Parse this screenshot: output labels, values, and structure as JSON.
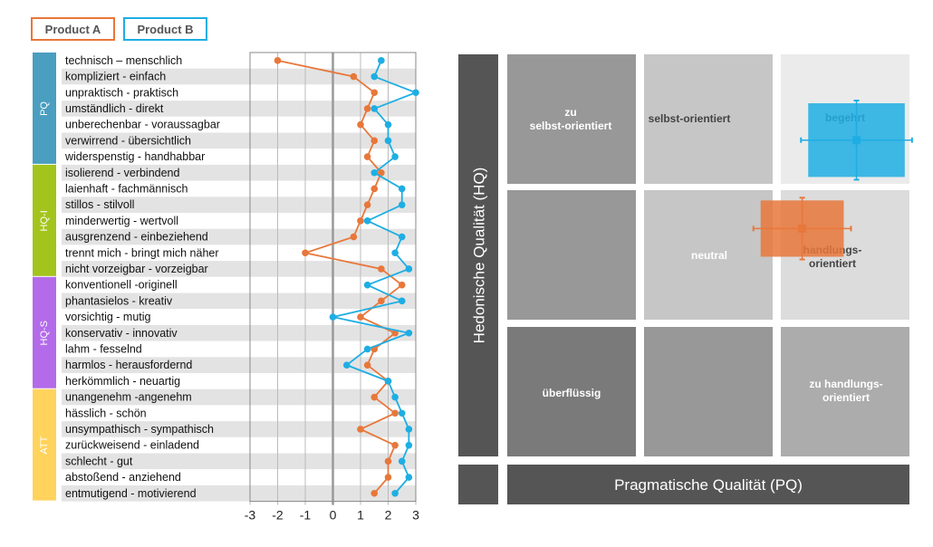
{
  "legend": {
    "product_a": {
      "label": "Product A",
      "color": "#E8773A"
    },
    "product_b": {
      "label": "Product B",
      "color": "#1EAEE3"
    }
  },
  "chart_data": [
    {
      "type": "line",
      "categories": [
        "technisch – menschlich",
        "kompliziert - einfach",
        "unpraktisch - praktisch",
        "umständlich - direkt",
        "unberechenbar - voraussagbar",
        "verwirrend - übersichtlich",
        "widerspenstig - handhabbar",
        "isolierend - verbindend",
        "laienhaft - fachmännisch",
        "stillos - stilvoll",
        "minderwertig - wertvoll",
        "ausgrenzend - einbeziehend",
        "trennt mich - bringt mich näher",
        "nicht vorzeigbar - vorzeigbar",
        "konventionell -originell",
        "phantasielos - kreativ",
        "vorsichtig - mutig",
        "konservativ - innovativ",
        "lahm - fesselnd",
        "harmlos - herausfordernd",
        "herkömmlich - neuartig",
        "unangenehm -angenehm",
        "hässlich - schön",
        "unsympathisch - sympathisch",
        "zurückweisend - einladend",
        "schlecht - gut",
        "abstoßend - anziehend",
        "entmutigend - motivierend"
      ],
      "groups": [
        {
          "label": "PQ",
          "count": 7,
          "color": "#4A9EBF"
        },
        {
          "label": "HQ-I",
          "count": 7,
          "color": "#A3C41C"
        },
        {
          "label": "HQ-S",
          "count": 7,
          "color": "#B36BEA"
        },
        {
          "label": "ATT",
          "count": 7,
          "color": "#FFD35C"
        }
      ],
      "series": [
        {
          "name": "Product A",
          "color": "#E8773A",
          "values": [
            -2.0,
            0.75,
            1.5,
            1.25,
            1.0,
            1.5,
            1.25,
            1.75,
            1.5,
            1.25,
            1.0,
            0.75,
            -1.0,
            1.75,
            2.5,
            1.75,
            1.0,
            2.25,
            1.5,
            1.25,
            2.0,
            1.5,
            2.25,
            1.0,
            2.25,
            2.0,
            2.0,
            1.5
          ]
        },
        {
          "name": "Product B",
          "color": "#1EAEE3",
          "values": [
            1.75,
            1.5,
            3.0,
            1.5,
            2.0,
            2.0,
            2.25,
            1.5,
            2.5,
            2.5,
            1.25,
            2.5,
            2.25,
            2.75,
            1.25,
            2.5,
            0.0,
            2.75,
            1.25,
            0.5,
            2.0,
            2.25,
            2.5,
            2.75,
            2.75,
            2.5,
            2.75,
            2.25
          ]
        }
      ],
      "xlim": [
        -3,
        3
      ],
      "ticks": [
        "-3",
        "-2",
        "-1",
        "0",
        "1",
        "2",
        "3"
      ]
    },
    {
      "type": "scatter",
      "xlabel": "Pragmatische Qualität (PQ)",
      "ylabel": "Hedonische Qualität (HQ)",
      "regions": [
        [
          "zu\nselbst-orientiert",
          "selbst-orientiert",
          "begehrt"
        ],
        [
          "",
          "neutral",
          "handlungs-\norientiert"
        ],
        [
          "überflüssig",
          "",
          "zu handlungs-\norientiert"
        ]
      ],
      "points": [
        {
          "name": "Product A",
          "color": "#E8773A",
          "pq": 1.4,
          "hq": 0.4,
          "ci_pq": 0.62,
          "ci_hq": 0.42
        },
        {
          "name": "Product B",
          "color": "#1EAEE3",
          "pq": 2.21,
          "hq": 1.72,
          "ci_pq": 0.72,
          "ci_hq": 0.55
        }
      ]
    }
  ]
}
